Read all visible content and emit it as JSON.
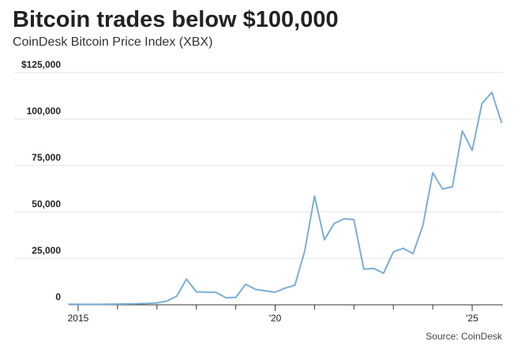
{
  "chart_data": {
    "type": "line",
    "title": "Bitcoin trades below $100,000",
    "subtitle": "CoinDesk Bitcoin Price Index (XBX)",
    "source": "Source: CoinDesk",
    "x": [
      2014.75,
      2015.0,
      2015.25,
      2015.5,
      2015.75,
      2016.0,
      2016.25,
      2016.5,
      2016.75,
      2017.0,
      2017.25,
      2017.5,
      2017.75,
      2018.0,
      2018.25,
      2018.5,
      2018.75,
      2019.0,
      2019.25,
      2019.5,
      2019.75,
      2020.0,
      2020.25,
      2020.5,
      2020.75,
      2021.0,
      2021.25,
      2021.5,
      2021.75,
      2022.0,
      2022.25,
      2022.5,
      2022.75,
      2023.0,
      2023.25,
      2023.5,
      2023.75,
      2024.0,
      2024.25,
      2024.5,
      2024.75,
      2025.0,
      2025.25,
      2025.5,
      2025.75
    ],
    "series": [
      {
        "name": "XBX",
        "color": "#7aaed6",
        "values": [
          350,
          250,
          250,
          250,
          300,
          400,
          450,
          600,
          700,
          1000,
          2000,
          4600,
          13800,
          7000,
          6800,
          6700,
          3800,
          4000,
          11000,
          8300,
          7500,
          6800,
          9000,
          10500,
          29000,
          58500,
          35000,
          43800,
          46300,
          45800,
          19200,
          19600,
          17000,
          28500,
          30400,
          27500,
          42700,
          71000,
          62300,
          63500,
          93500,
          83000,
          108300,
          114300,
          97800
        ]
      }
    ],
    "xlim": [
      2014.78,
      2025.78
    ],
    "xticks": [
      {
        "value": 2015,
        "label": "2015"
      },
      {
        "value": 2020,
        "label": "'20"
      },
      {
        "value": 2025,
        "label": "'25"
      }
    ],
    "xminor_ticks": [
      2016,
      2017,
      2018,
      2019,
      2021,
      2022,
      2023,
      2024
    ],
    "ylim": [
      0,
      125000
    ],
    "yticks": [
      0,
      {
        "value": 25000,
        "label": "25,000"
      },
      {
        "value": 50000,
        "label": "50,000"
      },
      {
        "value": 75000,
        "label": "75,000"
      },
      {
        "value": 100000,
        "label": "100,000"
      },
      {
        "value": 125000,
        "label": "$125,000"
      }
    ],
    "grid": true
  }
}
